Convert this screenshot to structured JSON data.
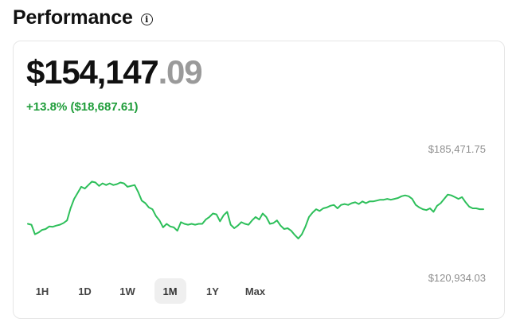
{
  "header": {
    "title": "Performance",
    "info_icon": "info-icon"
  },
  "portfolio": {
    "value_main": "$154,147",
    "value_cents": ".09",
    "change": "+13.8% ($18,687.61)",
    "change_color": "#1f9d3a"
  },
  "chart_data": {
    "type": "line",
    "title": "",
    "xlabel": "",
    "ylabel": "",
    "max_label": "$185,471.75",
    "min_label": "$120,934.03",
    "ylim": [
      120934.03,
      185471.75
    ],
    "line_color": "#2dbf5a",
    "series": [
      {
        "values": [
          146500,
          146000,
          140500,
          141500,
          143000,
          143500,
          145000,
          144800,
          145500,
          146000,
          147000,
          148500,
          155500,
          161000,
          164500,
          168000,
          167000,
          169000,
          171000,
          170500,
          168500,
          170000,
          169000,
          170000,
          169000,
          169500,
          170500,
          170000,
          168000,
          168500,
          169000,
          165000,
          160000,
          158500,
          156000,
          155000,
          151000,
          148500,
          144500,
          146500,
          145000,
          144500,
          142500,
          147500,
          146500,
          146000,
          146500,
          146000,
          146500,
          146500,
          149000,
          150500,
          152500,
          152000,
          148000,
          151500,
          153500,
          146000,
          144000,
          145500,
          147500,
          146500,
          146000,
          148500,
          150500,
          149000,
          152500,
          150500,
          146500,
          147000,
          148500,
          145500,
          143500,
          144000,
          142500,
          140000,
          138000,
          140500,
          145000,
          150500,
          153000,
          155000,
          154000,
          155500,
          156000,
          157000,
          157500,
          155500,
          157500,
          158000,
          157500,
          158500,
          159000,
          158000,
          159500,
          158500,
          159500,
          159500,
          160000,
          160500,
          160500,
          161000,
          160500,
          161000,
          161500,
          162500,
          163000,
          162500,
          161000,
          157500,
          156000,
          155000,
          154500,
          155500,
          153500,
          157000,
          158500,
          161000,
          163500,
          163000,
          162000,
          161000,
          162000,
          159000,
          156500,
          155500,
          155500,
          155000,
          155000
        ]
      }
    ]
  },
  "ranges": [
    {
      "label": "1H",
      "active": false
    },
    {
      "label": "1D",
      "active": false
    },
    {
      "label": "1W",
      "active": false
    },
    {
      "label": "1M",
      "active": true
    },
    {
      "label": "1Y",
      "active": false
    },
    {
      "label": "Max",
      "active": false
    }
  ]
}
